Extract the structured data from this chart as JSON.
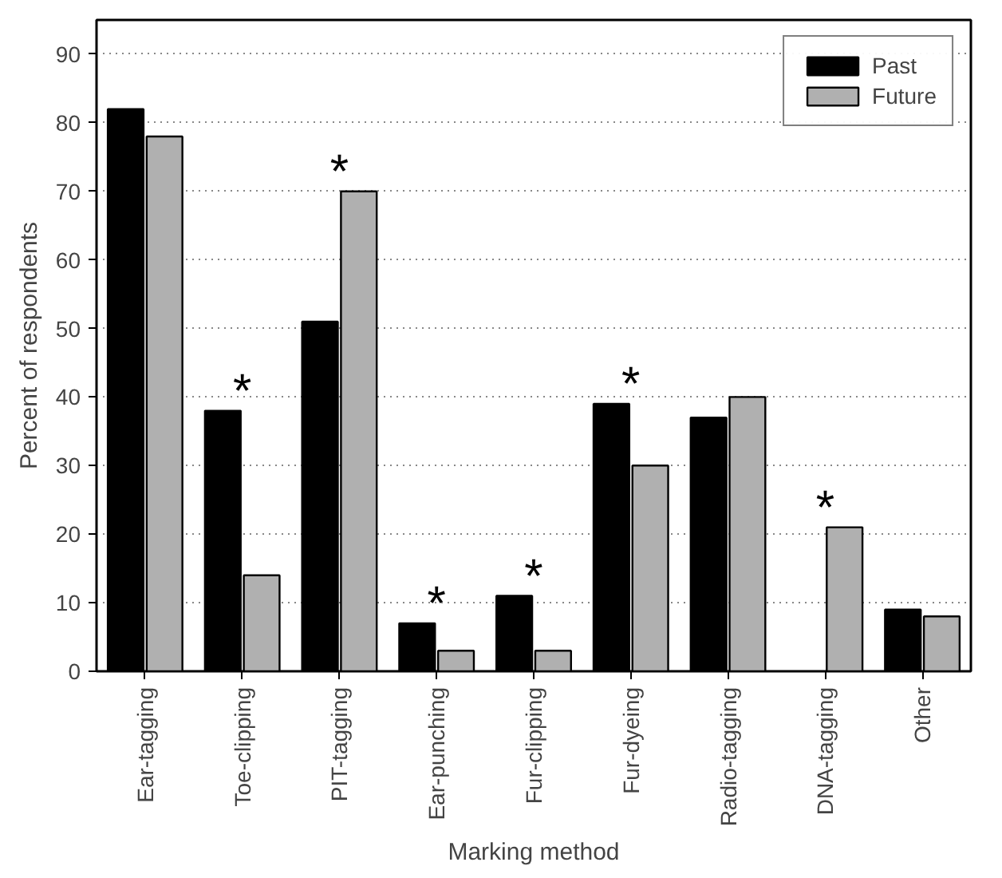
{
  "chart_data": {
    "type": "bar",
    "xlabel": "Marking method",
    "ylabel": "Percent of respondents",
    "categories": [
      "Ear-tagging",
      "Toe-clipping",
      "PIT-tagging",
      "Ear-punching",
      "Fur-clipping",
      "Fur-dyeing",
      "Radio-tagging",
      "DNA-tagging",
      "Other"
    ],
    "series": [
      {
        "name": "Past",
        "color": "#000000",
        "values": [
          82,
          38,
          51,
          7,
          11,
          39,
          37,
          null,
          9
        ]
      },
      {
        "name": "Future",
        "color": "#b0b0b0",
        "values": [
          78,
          14,
          70,
          3,
          3,
          30,
          40,
          21,
          8
        ]
      }
    ],
    "ylim": [
      0,
      95
    ],
    "yticks": [
      0,
      10,
      20,
      30,
      40,
      50,
      60,
      70,
      80,
      90
    ],
    "grid": "y",
    "legend": "top right",
    "annotations": [
      {
        "text": "*",
        "x": "Toe-clipping",
        "y": 38
      },
      {
        "text": "*",
        "x": "PIT-tagging",
        "y": 70
      },
      {
        "text": "*",
        "x": "Ear-punching",
        "y": 7
      },
      {
        "text": "*",
        "x": "Fur-clipping",
        "y": 11
      },
      {
        "text": "*",
        "x": "Fur-dyeing",
        "y": 39
      },
      {
        "text": "*",
        "x": "DNA-tagging",
        "y": 21
      }
    ]
  }
}
